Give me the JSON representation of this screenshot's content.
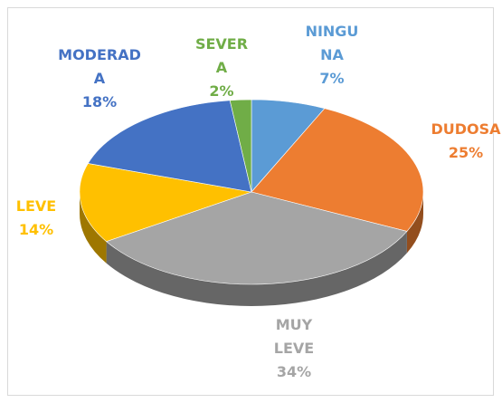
{
  "chart_data": {
    "type": "pie",
    "categories": [
      "NINGUNA",
      "DUDOSA",
      "MUY LEVE",
      "LEVE",
      "MODERADA",
      "SEVERA"
    ],
    "values": [
      7,
      25,
      34,
      14,
      18,
      2
    ],
    "value_labels": [
      "7%",
      "25%",
      "34%",
      "14%",
      "18%",
      "2%"
    ],
    "colors": [
      "#5b9bd5",
      "#ed7d31",
      "#a5a5a5",
      "#ffc000",
      "#4472c4",
      "#70ad47"
    ]
  }
}
